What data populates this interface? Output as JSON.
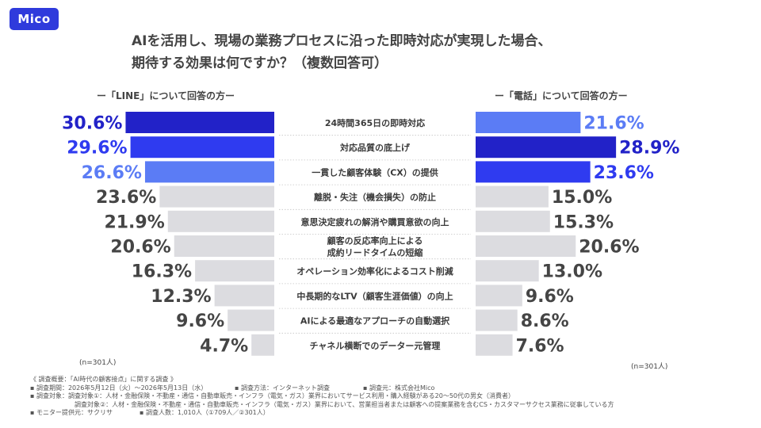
{
  "logo": "Mico",
  "title": {
    "line1": "AIを活用し、現場の業務プロセスに沿った即時対応が実現した場合、",
    "line2": "期待する効果は何ですか？（複数回答可）"
  },
  "legend": {
    "left": "ー「LINE」について回答の方ー",
    "right": "ー「電話」について回答の方ー"
  },
  "sample": {
    "left": "(n=301人)",
    "right": "(n=301人)"
  },
  "colors": {
    "rank1": "#2222c8",
    "rank2": "#2f3bf0",
    "rank3": "#5b7cf5",
    "other": "#dcdce0"
  },
  "chart_data": {
    "type": "bar",
    "categories": [
      "24時間365日の即時対応",
      "対応品質の底上げ",
      "一貫した顧客体験（CX）の提供",
      "離脱・失注（機会損失）の防止",
      "意思決定疲れの解消や購買意欲の向上",
      "顧客の反応率向上による\n成約リードタイムの短縮",
      "オペレーション効率化によるコスト削減",
      "中長期的なLTV（顧客生涯価値）の向上",
      "AIによる最適なアプローチの自動選択",
      "チャネル横断でのデーター元管理"
    ],
    "series": [
      {
        "name": "LINE",
        "values": [
          30.6,
          29.6,
          26.6,
          23.6,
          21.9,
          20.6,
          16.3,
          12.3,
          9.6,
          4.7
        ],
        "labels": [
          "30.6%",
          "29.6%",
          "26.6%",
          "23.6%",
          "21.9%",
          "20.6%",
          "16.3%",
          "12.3%",
          "9.6%",
          "4.7%"
        ],
        "rank": [
          1,
          2,
          3,
          0,
          0,
          0,
          0,
          0,
          0,
          0
        ]
      },
      {
        "name": "電話",
        "values": [
          21.6,
          28.9,
          23.6,
          15.0,
          15.3,
          20.6,
          13.0,
          9.6,
          8.6,
          7.6
        ],
        "labels": [
          "21.6%",
          "28.9%",
          "23.6%",
          "15.0%",
          "15.3%",
          "20.6%",
          "13.0%",
          "9.6%",
          "8.6%",
          "7.6%"
        ],
        "rank": [
          3,
          1,
          2,
          0,
          0,
          0,
          0,
          0,
          0,
          0
        ]
      }
    ],
    "xlim": [
      0,
      31
    ]
  },
  "notes": {
    "line1": "《 調査概要：「AI時代の顧客接点」に関する調査 》",
    "row2": [
      "▪ 調査期間：2026年5月12日（火）〜2026年5月13日（水）",
      "▪ 調査方法：インターネット調査",
      "▪ 調査元：株式会社Mico"
    ],
    "line3": "▪ 調査対象：調査対象①：人材・金融保険・不動産・通信・自動車販売・インフラ（電気・ガス）業界においてサービス利用・購入経験がある20〜50代の男女（消費者）",
    "line4": "調査対象②：人材・金融保険・不動産・通信・自動車販売・インフラ（電気・ガス）業界において、営業担当者または顧客への提案業務を含むCS・カスタマーサクセス業務に従事している方",
    "row5": [
      "▪ モニター提供元：サクリサ",
      "▪ 調査人数：1,010人（①709人／②301人）"
    ]
  }
}
